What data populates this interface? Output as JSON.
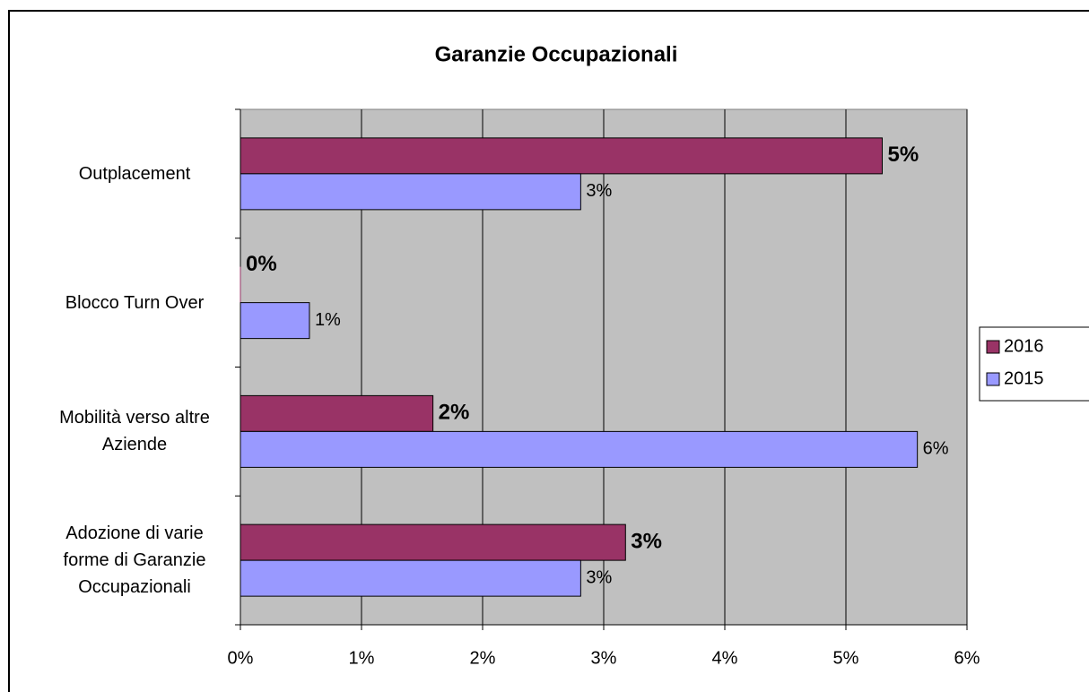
{
  "chart_data": {
    "type": "hbar",
    "title": "Garanzie Occupazionali",
    "categories": [
      "Outplacement",
      "Blocco Turn Over",
      "Mobilità verso altre Aziende",
      "Adozione di varie forme di Garanzie Occupazionali"
    ],
    "series": [
      {
        "name": "2016",
        "color": "#993366",
        "values": [
          5.3,
          0,
          1.59,
          3.18
        ],
        "value_labels": [
          "5%",
          "0%",
          "2%",
          "3%"
        ]
      },
      {
        "name": "2015",
        "color": "#9999ff",
        "values": [
          2.81,
          0.57,
          5.59,
          2.81
        ],
        "value_labels": [
          "3%",
          "1%",
          "6%",
          "3%"
        ]
      }
    ],
    "xlim": [
      0,
      6
    ],
    "xticks": [
      {
        "value": 0,
        "label": "0%"
      },
      {
        "value": 1,
        "label": "1%"
      },
      {
        "value": 2,
        "label": "2%"
      },
      {
        "value": 3,
        "label": "3%"
      },
      {
        "value": 4,
        "label": "4%"
      },
      {
        "value": 5,
        "label": "5%"
      },
      {
        "value": 6,
        "label": "6%"
      }
    ],
    "grid": true,
    "legend": "right"
  }
}
